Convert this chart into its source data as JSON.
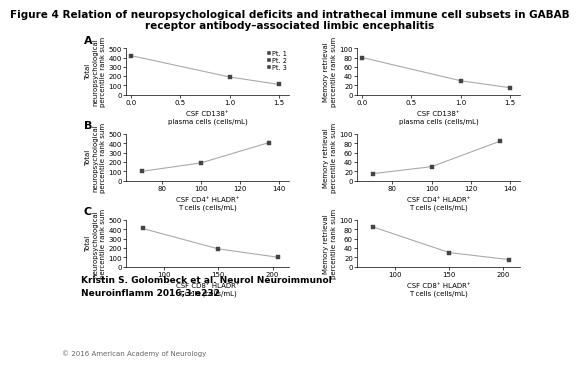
{
  "title_line1": "Figure 4 Relation of neuropsychological deficits and intrathecal immune cell subsets in GABAB",
  "title_line2": "receptor antibody–associated limbic encephalitis",
  "footer": "Kristin S. Golombeck et al. Neurol Neuroimmunol\nNeuroinflamm 2016;3:e232",
  "copyright": "© 2016 American Academy of Neurology",
  "panel_A": {
    "left": {
      "xlabel": "CSF CD138⁺\nplasma cells (cells/mL)",
      "ylabel": "Total\nneuropsychological\npercentile rank sum",
      "x": [
        0.0,
        1.0,
        1.5
      ],
      "y": [
        420,
        190,
        110
      ],
      "xlim": [
        -0.05,
        1.6
      ],
      "xticks": [
        0.0,
        0.5,
        1.0,
        1.5
      ],
      "xticklabels": [
        "0.0",
        "0.5",
        "1.0",
        "1.5"
      ],
      "ylim": [
        0,
        500
      ],
      "yticks": [
        0,
        100,
        200,
        300,
        400,
        500
      ]
    },
    "right": {
      "xlabel": "CSF CD138⁺\nplasma cells (cells/mL)",
      "ylabel": "Memory retrieval\npercentile rank sum",
      "x": [
        0.0,
        1.0,
        1.5
      ],
      "y": [
        80,
        30,
        15
      ],
      "xlim": [
        -0.05,
        1.6
      ],
      "xticks": [
        0.0,
        0.5,
        1.0,
        1.5
      ],
      "xticklabels": [
        "0.0",
        "0.5",
        "1.0",
        "1.5"
      ],
      "ylim": [
        0,
        100
      ],
      "yticks": [
        0,
        20,
        40,
        60,
        80,
        100
      ]
    },
    "legend": [
      "Pt. 1",
      "Pt. 2",
      "Pt. 3"
    ]
  },
  "panel_B": {
    "left": {
      "xlabel": "CSF CD4⁺ HLADR⁺\nT cells (cells/mL)",
      "ylabel": "Total\nneuropsychological\npercentile rank sum",
      "x": [
        70,
        100,
        135
      ],
      "y": [
        100,
        190,
        410
      ],
      "xlim": [
        62,
        145
      ],
      "xticks": [
        80,
        100,
        120,
        140
      ],
      "xticklabels": [
        "80",
        "100",
        "120",
        "140"
      ],
      "ylim": [
        0,
        500
      ],
      "yticks": [
        0,
        100,
        200,
        300,
        400,
        500
      ]
    },
    "right": {
      "xlabel": "CSF CD4⁺ HLADR⁺\nT cells (cells/mL)",
      "ylabel": "Memory retrieval\npercentile rank sum",
      "x": [
        70,
        100,
        135
      ],
      "y": [
        15,
        30,
        85
      ],
      "xlim": [
        62,
        145
      ],
      "xticks": [
        80,
        100,
        120,
        140
      ],
      "xticklabels": [
        "80",
        "100",
        "120",
        "140"
      ],
      "ylim": [
        0,
        100
      ],
      "yticks": [
        0,
        20,
        40,
        60,
        80,
        100
      ]
    }
  },
  "panel_C": {
    "left": {
      "xlabel": "CSF CD8⁺ HLADR⁺\nT cells (cells/mL)",
      "ylabel": "Total\nneuropsychological\npercentile rank sum",
      "x": [
        80,
        150,
        205
      ],
      "y": [
        410,
        190,
        100
      ],
      "xlim": [
        65,
        215
      ],
      "xticks": [
        100,
        150,
        200
      ],
      "xticklabels": [
        "100",
        "150",
        "200"
      ],
      "ylim": [
        0,
        500
      ],
      "yticks": [
        0,
        100,
        200,
        300,
        400,
        500
      ]
    },
    "right": {
      "xlabel": "CSF CD8⁺ HLADR⁺\nT cells (cells/mL)",
      "ylabel": "Memory retrieval\npercentile rank sum",
      "x": [
        80,
        150,
        205
      ],
      "y": [
        85,
        30,
        15
      ],
      "xlim": [
        65,
        215
      ],
      "xticks": [
        100,
        150,
        200
      ],
      "xticklabels": [
        "100",
        "150",
        "200"
      ],
      "ylim": [
        0,
        100
      ],
      "yticks": [
        0,
        20,
        40,
        60,
        80,
        100
      ]
    }
  },
  "line_color": "#aaaaaa",
  "marker_color": "#444444",
  "marker_style": "s",
  "marker_size": 3.0,
  "bg_color": "#ffffff",
  "label_fontsize": 5.0,
  "tick_fontsize": 5.0,
  "title_fontsize": 7.5,
  "footer_fontsize": 6.5,
  "copyright_fontsize": 5.0,
  "panel_label_fontsize": 8.0
}
